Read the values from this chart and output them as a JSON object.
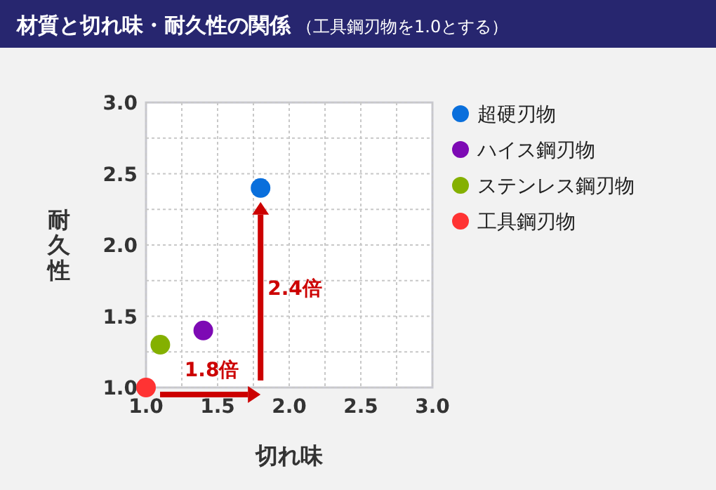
{
  "chart_data": {
    "type": "scatter",
    "title": "材質と切れ味・耐久性の関係",
    "subtitle": "（工具鋼刃物を1.0とする）",
    "xlabel": "切れ味",
    "ylabel": "耐久性",
    "series": [
      {
        "name": "超硬刃物",
        "color": "#0a6fdc",
        "x": [
          1.8
        ],
        "values": [
          2.4
        ]
      },
      {
        "name": "ハイス鋼刃物",
        "color": "#7d0ab4",
        "x": [
          1.4
        ],
        "values": [
          1.4
        ]
      },
      {
        "name": "ステンレス鋼刃物",
        "color": "#84b000",
        "x": [
          1.1
        ],
        "values": [
          1.3
        ]
      },
      {
        "name": "工具鋼刃物",
        "color": "#ff3333",
        "x": [
          1.0
        ],
        "values": [
          1.0
        ]
      }
    ],
    "annotations": [
      "1.8倍",
      "2.4倍"
    ],
    "xlim": [
      1.0,
      3.0
    ],
    "ylim": [
      1.0,
      3.0
    ],
    "xticks": [
      {
        "value": 1,
        "label": "1.0"
      },
      {
        "value": 1.25,
        "label": null
      },
      1.5,
      {
        "value": 1.75,
        "label": null
      },
      {
        "value": 2,
        "label": "2.0"
      },
      {
        "value": 2.25,
        "label": null
      },
      2.5,
      {
        "value": 2.75,
        "label": null
      },
      {
        "value": 3,
        "label": "3.0"
      }
    ],
    "yticks": [
      {
        "value": 1,
        "label": "1.0"
      },
      {
        "value": 1.25,
        "label": null
      },
      1.5,
      {
        "value": 1.75,
        "label": null
      },
      {
        "value": 2,
        "label": "2.0"
      },
      {
        "value": 2.25,
        "label": null
      },
      2.5,
      {
        "value": 2.75,
        "label": null
      },
      {
        "value": 3,
        "label": "3.0"
      }
    ],
    "grid": true,
    "legend": "right",
    "marker": "circle"
  }
}
